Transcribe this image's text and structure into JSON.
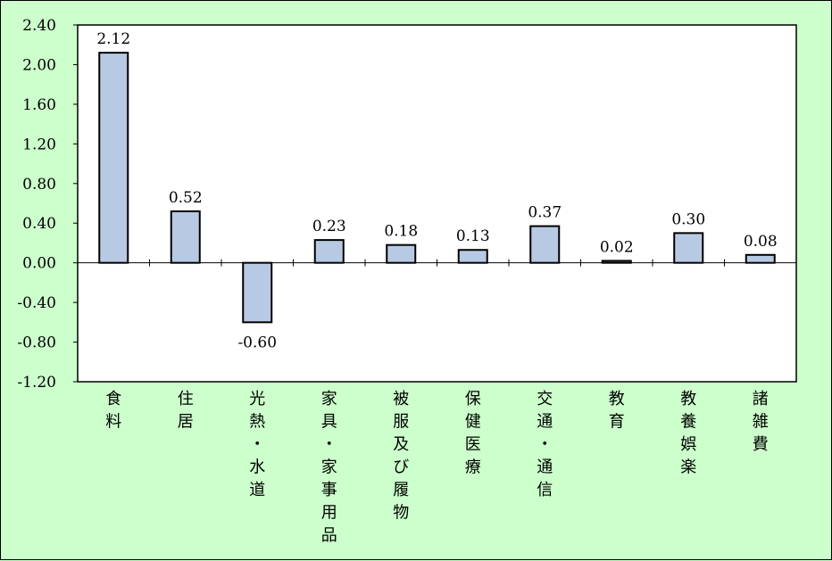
{
  "chart_data": {
    "type": "bar",
    "categories": [
      "食料",
      "住居",
      "光熱・水道",
      "家具・家事用品",
      "被服及び履物",
      "保健医療",
      "交通・通信",
      "教育",
      "教養娯楽",
      "諸雑費"
    ],
    "values": [
      2.12,
      0.52,
      -0.6,
      0.23,
      0.18,
      0.13,
      0.37,
      0.02,
      0.3,
      0.08
    ],
    "value_labels": [
      "2.12",
      "0.52",
      "-0.60",
      "0.23",
      "0.18",
      "0.13",
      "0.37",
      "0.02",
      "0.30",
      "0.08"
    ],
    "yticks": [
      2.4,
      2.0,
      1.6,
      1.2,
      0.8,
      0.4,
      0.0,
      -0.4,
      -0.8,
      -1.2
    ],
    "ytick_labels": [
      "2.40",
      "2.00",
      "1.60",
      "1.20",
      "0.80",
      "0.40",
      "0.00",
      "-0.40",
      "-0.80",
      "-1.20"
    ],
    "ylim": [
      -1.2,
      2.4
    ],
    "grid": false,
    "legend": "none",
    "colors": {
      "bar_fill": "#b8c9e3",
      "bar_stroke": "#000000",
      "plot_background": "#ffffff",
      "page_background": "#ccffcc"
    }
  }
}
